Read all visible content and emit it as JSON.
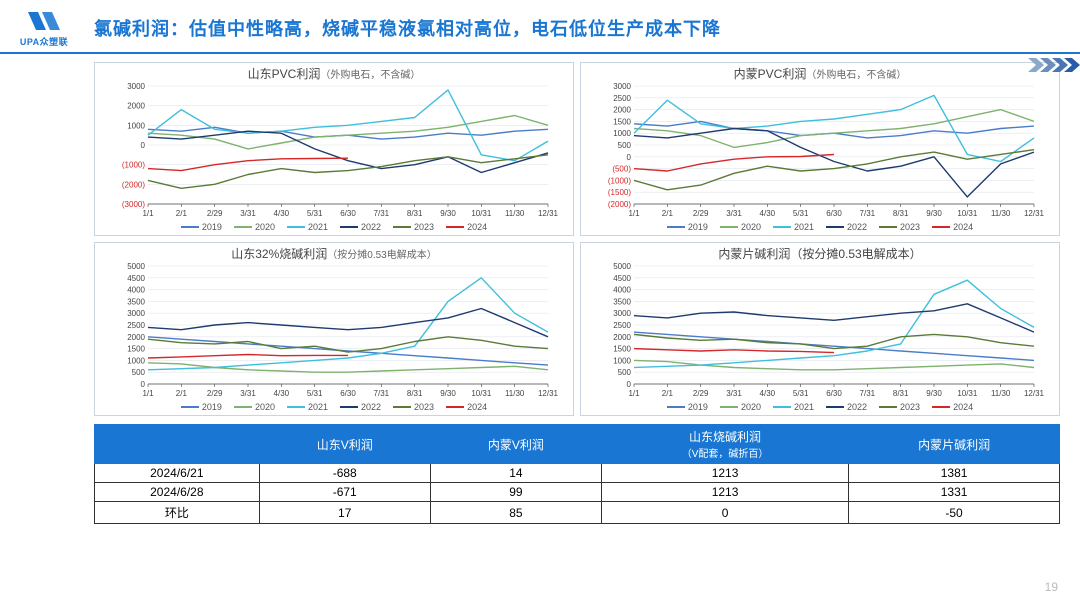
{
  "header": {
    "logo_text": "UPA众塑联",
    "title": "氯碱利润：估值中性略高，烧碱平稳液氯相对高位，电石低位生产成本下降"
  },
  "page_number": "19",
  "legend_series": [
    {
      "label": "2019",
      "color": "#4a7cc9"
    },
    {
      "label": "2020",
      "color": "#7eb26d"
    },
    {
      "label": "2021",
      "color": "#3fbfdc"
    },
    {
      "label": "2022",
      "color": "#1f3a6e"
    },
    {
      "label": "2023",
      "color": "#5a7a36"
    },
    {
      "label": "2024",
      "color": "#d62728"
    }
  ],
  "x_labels": [
    "1/1",
    "2/1",
    "2/29",
    "3/31",
    "4/30",
    "5/31",
    "6/30",
    "7/31",
    "8/31",
    "9/30",
    "10/31",
    "11/30",
    "12/31"
  ],
  "charts": [
    {
      "id": "chart1",
      "title": "山东PVC利润",
      "subtitle": "（外购电石，不含碱）",
      "ylim": [
        -3000,
        3000
      ],
      "yticks": [
        -3000,
        -2000,
        -1000,
        0,
        1000,
        2000,
        3000
      ],
      "neg_color": "#d62728",
      "axis_fontsize": 8,
      "title_fontsize": 12,
      "grid_color": "#e0e6ee",
      "axis_color": "#444",
      "series": {
        "2019": [
          800,
          700,
          900,
          600,
          700,
          400,
          500,
          300,
          400,
          600,
          500,
          700,
          800
        ],
        "2020": [
          600,
          500,
          300,
          -200,
          100,
          400,
          500,
          600,
          700,
          900,
          1200,
          1500,
          1000
        ],
        "2021": [
          500,
          1800,
          800,
          600,
          700,
          900,
          1000,
          1200,
          1400,
          2800,
          -500,
          -800,
          200
        ],
        "2022": [
          400,
          300,
          500,
          700,
          600,
          -200,
          -800,
          -1200,
          -1000,
          -600,
          -1400,
          -900,
          -400
        ],
        "2023": [
          -1800,
          -2200,
          -2000,
          -1500,
          -1200,
          -1400,
          -1300,
          -1100,
          -800,
          -600,
          -900,
          -700,
          -500
        ],
        "2024": [
          -1200,
          -1300,
          -1000,
          -800,
          -700,
          -688,
          -671
        ]
      }
    },
    {
      "id": "chart2",
      "title": "内蒙PVC利润",
      "subtitle": "（外购电石，不含碱）",
      "ylim": [
        -2000,
        3000
      ],
      "yticks": [
        -2000,
        -1500,
        -1000,
        -500,
        0,
        500,
        1000,
        1500,
        2000,
        2500,
        3000
      ],
      "neg_color": "#d62728",
      "axis_fontsize": 8,
      "title_fontsize": 12,
      "grid_color": "#e0e6ee",
      "axis_color": "#444",
      "series": {
        "2019": [
          1400,
          1300,
          1500,
          1200,
          1100,
          900,
          1000,
          800,
          900,
          1100,
          1000,
          1200,
          1300
        ],
        "2020": [
          1200,
          1100,
          900,
          400,
          600,
          900,
          1000,
          1100,
          1200,
          1400,
          1700,
          2000,
          1500
        ],
        "2021": [
          1000,
          2400,
          1400,
          1200,
          1300,
          1500,
          1600,
          1800,
          2000,
          2600,
          100,
          -200,
          800
        ],
        "2022": [
          900,
          800,
          1000,
          1200,
          1100,
          400,
          -200,
          -600,
          -400,
          0,
          -1700,
          -300,
          200
        ],
        "2023": [
          -1000,
          -1400,
          -1200,
          -700,
          -400,
          -600,
          -500,
          -300,
          0,
          200,
          -100,
          100,
          300
        ],
        "2024": [
          -500,
          -600,
          -300,
          -100,
          0,
          14,
          99
        ]
      }
    },
    {
      "id": "chart3",
      "title": "山东32%烧碱利润",
      "subtitle": "（按分摊0.53电解成本）",
      "ylim": [
        0,
        5000
      ],
      "yticks": [
        0,
        500,
        1000,
        1500,
        2000,
        2500,
        3000,
        3500,
        4000,
        4500,
        5000
      ],
      "neg_color": "#d62728",
      "axis_fontsize": 8,
      "title_fontsize": 12,
      "grid_color": "#e0e6ee",
      "axis_color": "#444",
      "series": {
        "2019": [
          2000,
          1900,
          1800,
          1700,
          1600,
          1500,
          1400,
          1300,
          1200,
          1100,
          1000,
          900,
          800
        ],
        "2020": [
          900,
          850,
          700,
          600,
          550,
          500,
          500,
          550,
          600,
          650,
          700,
          750,
          600
        ],
        "2021": [
          600,
          650,
          700,
          800,
          900,
          1000,
          1100,
          1300,
          1600,
          3500,
          4500,
          3000,
          2200
        ],
        "2022": [
          2400,
          2300,
          2500,
          2600,
          2500,
          2400,
          2300,
          2400,
          2600,
          2800,
          3200,
          2600,
          2000
        ],
        "2023": [
          1900,
          1750,
          1700,
          1800,
          1500,
          1600,
          1350,
          1500,
          1800,
          2000,
          1850,
          1600,
          1500
        ],
        "2024": [
          1100,
          1150,
          1200,
          1250,
          1200,
          1213,
          1213
        ]
      }
    },
    {
      "id": "chart4",
      "title": "内蒙片碱利润（按分摊0.53电解成本）",
      "subtitle": "",
      "ylim": [
        0,
        5000
      ],
      "yticks": [
        0,
        500,
        1000,
        1500,
        2000,
        2500,
        3000,
        3500,
        4000,
        4500,
        5000
      ],
      "neg_color": "#d62728",
      "axis_fontsize": 8,
      "title_fontsize": 12,
      "grid_color": "#e0e6ee",
      "axis_color": "#444",
      "series": {
        "2019": [
          2200,
          2100,
          2000,
          1900,
          1800,
          1700,
          1600,
          1500,
          1400,
          1300,
          1200,
          1100,
          1000
        ],
        "2020": [
          1000,
          950,
          800,
          700,
          650,
          600,
          600,
          650,
          700,
          750,
          800,
          850,
          700
        ],
        "2021": [
          700,
          750,
          800,
          900,
          1000,
          1100,
          1200,
          1400,
          1700,
          3800,
          4400,
          3200,
          2400
        ],
        "2022": [
          2900,
          2800,
          3000,
          3050,
          2900,
          2800,
          2700,
          2850,
          3000,
          3100,
          3400,
          2800,
          2200
        ],
        "2023": [
          2100,
          1950,
          1850,
          1900,
          1750,
          1700,
          1500,
          1600,
          2000,
          2100,
          2000,
          1750,
          1600
        ],
        "2024": [
          1500,
          1450,
          1400,
          1450,
          1400,
          1381,
          1331
        ]
      }
    }
  ],
  "table": {
    "header_bg": "#1976d2",
    "header_color": "#ffffff",
    "border_color": "#333333",
    "columns": [
      {
        "label": "",
        "sub": ""
      },
      {
        "label": "山东V利润",
        "sub": ""
      },
      {
        "label": "内蒙V利润",
        "sub": ""
      },
      {
        "label": "山东烧碱利润",
        "sub": "（V配套，碱折百）"
      },
      {
        "label": "内蒙片碱利润",
        "sub": ""
      }
    ],
    "rows": [
      {
        "label": "2024/6/21",
        "cells": [
          "-688",
          "14",
          "1213",
          "1381"
        ]
      },
      {
        "label": "2024/6/28",
        "cells": [
          "-671",
          "99",
          "1213",
          "1331"
        ]
      },
      {
        "label": "环比",
        "cells": [
          "17",
          "85",
          "0",
          "-50"
        ]
      }
    ]
  },
  "arrow_colors": [
    "#8aa9c7",
    "#6b8fbd",
    "#4a76b3",
    "#2a5da9"
  ]
}
